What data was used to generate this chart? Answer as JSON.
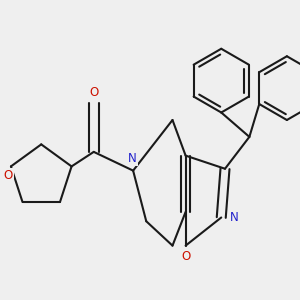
{
  "background_color": "#efefef",
  "bond_color": "#1a1a1a",
  "N_color": "#2222cc",
  "O_color": "#cc1100",
  "lw": 1.5,
  "fs": 8.5,
  "xlim": [
    -2.8,
    5.2
  ],
  "ylim": [
    -2.5,
    4.5
  ]
}
